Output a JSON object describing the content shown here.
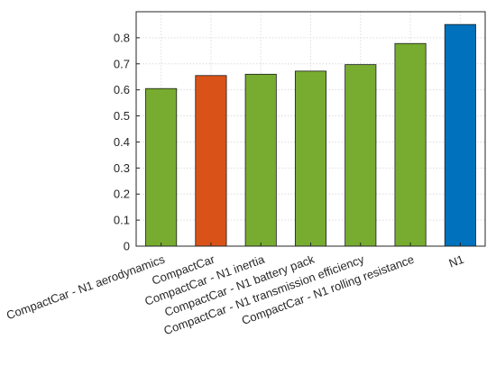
{
  "chart_data": {
    "type": "bar",
    "title": "",
    "xlabel": "",
    "ylabel": "",
    "categories": [
      "CompactCar - N1 aerodynamics",
      "CompactCar",
      "CompactCar - N1 inertia",
      "CompactCar - N1 battery pack",
      "CompactCar - N1 transmission efficiency",
      "CompactCar - N1 rolling resistance",
      "N1"
    ],
    "values": [
      0.605,
      0.655,
      0.66,
      0.672,
      0.697,
      0.778,
      0.851
    ],
    "bar_colors": [
      "#77AC30",
      "#D95319",
      "#77AC30",
      "#77AC30",
      "#77AC30",
      "#77AC30",
      "#0072BD"
    ],
    "ylim": [
      0,
      0.9
    ],
    "yticks": [
      0,
      0.1,
      0.2,
      0.3,
      0.4,
      0.5,
      0.6,
      0.7,
      0.8
    ],
    "ytick_labels": [
      "0",
      "0.1",
      "0.2",
      "0.3",
      "0.4",
      "0.5",
      "0.6",
      "0.7",
      "0.8"
    ],
    "grid": true,
    "legend": "none"
  }
}
